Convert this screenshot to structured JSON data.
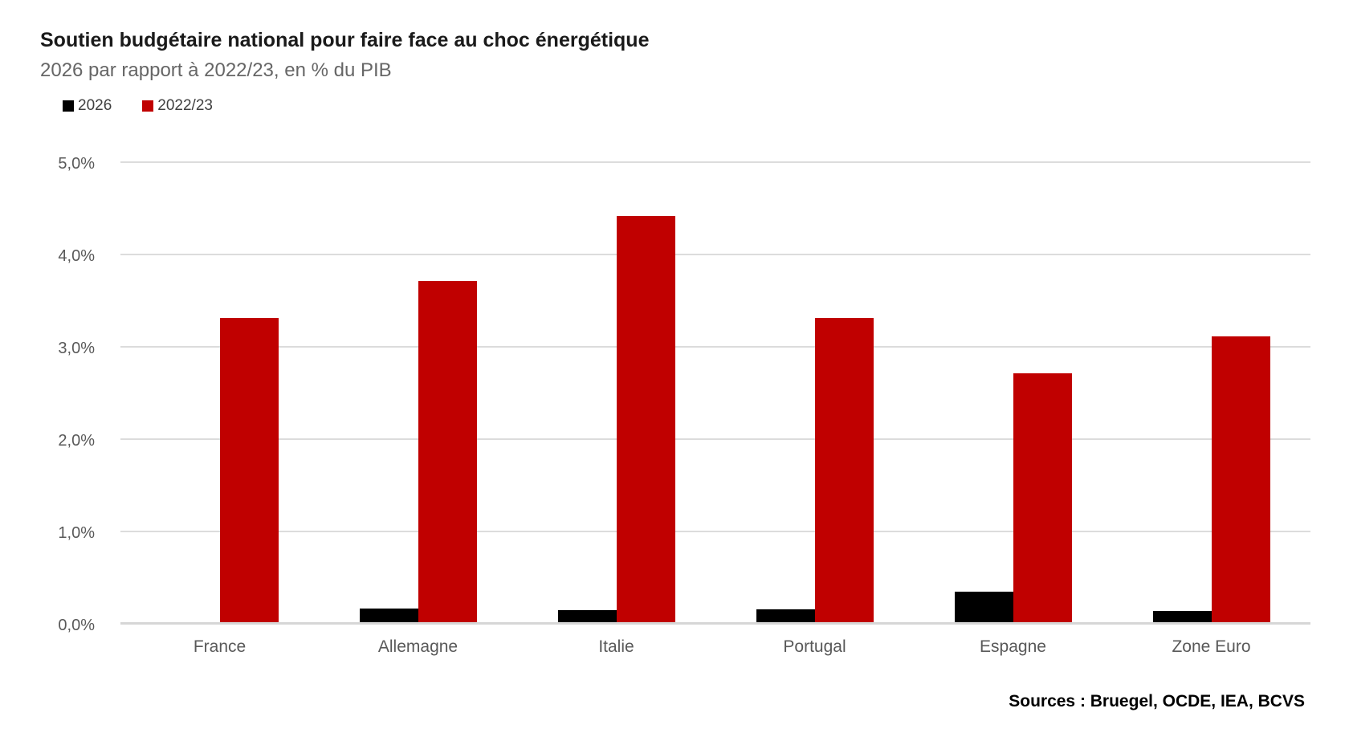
{
  "title": "Soutien budgétaire national pour faire face au choc énergétique",
  "subtitle": "2026 par rapport à 2022/23, en % du PIB",
  "source_note": "Sources : Bruegel, OCDE, IEA, BCVS",
  "colors": {
    "series_2026": "#000000",
    "series_2022_23": "#c00000",
    "gridline": "#dcdcdc",
    "axis_text": "#595959",
    "subtitle_text": "#666666"
  },
  "chart_data": {
    "type": "bar",
    "categories": [
      "France",
      "Allemagne",
      "Italie",
      "Portugal",
      "Espagne",
      "Zone Euro"
    ],
    "series": [
      {
        "name": "2026",
        "color": "#000000",
        "values": [
          0.0,
          0.15,
          0.13,
          0.14,
          0.33,
          0.12
        ]
      },
      {
        "name": "2022/23",
        "color": "#c00000",
        "values": [
          3.3,
          3.7,
          4.4,
          3.3,
          2.7,
          3.1
        ]
      }
    ],
    "title": "Soutien budgétaire national pour faire face au choc énergétique",
    "subtitle": "2026 par rapport à 2022/23, en % du PIB",
    "xlabel": "",
    "ylabel": "% du PIB",
    "ylim": [
      0,
      5
    ],
    "y_ticks": [
      "0,0%",
      "1,0%",
      "2,0%",
      "3,0%",
      "4,0%",
      "5,0%"
    ],
    "grid": true,
    "legend_position": "top-left"
  }
}
